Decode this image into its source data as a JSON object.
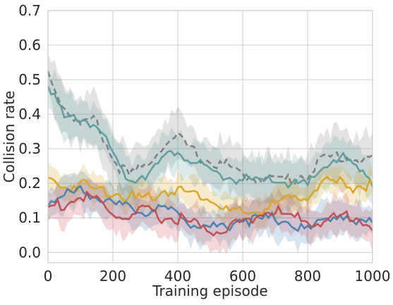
{
  "chart_data": {
    "type": "line",
    "title": "",
    "xlabel": "Training episode",
    "ylabel": "Collision rate",
    "xlim": [
      0,
      1000
    ],
    "ylim": [
      -0.03,
      0.7
    ],
    "xticks": [
      0,
      200,
      400,
      600,
      800,
      1000
    ],
    "yticks": [
      0.0,
      0.1,
      0.2,
      0.3,
      0.4,
      0.5,
      0.6,
      0.7
    ],
    "xtick_labels": [
      "0",
      "200",
      "400",
      "600",
      "800",
      "1000"
    ],
    "ytick_labels": [
      "0.0",
      "0.1",
      "0.2",
      "0.3",
      "0.4",
      "0.5",
      "0.6",
      "0.7"
    ],
    "grid": true,
    "legend": "none",
    "x": [
      0,
      50,
      100,
      150,
      200,
      250,
      300,
      350,
      400,
      450,
      500,
      550,
      600,
      650,
      700,
      750,
      800,
      850,
      900,
      950,
      1000
    ],
    "series": [
      {
        "color": "#7f7f7f",
        "dash": "dashed",
        "values": [
          0.52,
          0.42,
          0.37,
          0.38,
          0.27,
          0.22,
          0.25,
          0.31,
          0.33,
          0.29,
          0.26,
          0.25,
          0.22,
          0.22,
          0.21,
          0.21,
          0.23,
          0.27,
          0.28,
          0.27,
          0.27
        ],
        "band": 0.07
      },
      {
        "color": "#5f9ea0",
        "dash": "solid",
        "values": [
          0.5,
          0.38,
          0.39,
          0.37,
          0.28,
          0.21,
          0.23,
          0.26,
          0.3,
          0.26,
          0.23,
          0.22,
          0.21,
          0.2,
          0.21,
          0.2,
          0.19,
          0.25,
          0.28,
          0.24,
          0.21
        ],
        "band": 0.06
      },
      {
        "color": "#daa520",
        "dash": "solid",
        "values": [
          0.21,
          0.19,
          0.2,
          0.18,
          0.18,
          0.16,
          0.15,
          0.18,
          0.18,
          0.17,
          0.16,
          0.12,
          0.11,
          0.12,
          0.14,
          0.15,
          0.17,
          0.2,
          0.2,
          0.19,
          0.2
        ],
        "band": 0.04
      },
      {
        "color": "#4682b4",
        "dash": "solid",
        "values": [
          0.15,
          0.16,
          0.18,
          0.17,
          0.13,
          0.13,
          0.12,
          0.12,
          0.12,
          0.08,
          0.07,
          0.08,
          0.1,
          0.09,
          0.1,
          0.09,
          0.06,
          0.1,
          0.11,
          0.08,
          0.09
        ],
        "band": 0.05
      },
      {
        "color": "#c44e52",
        "dash": "solid",
        "values": [
          0.13,
          0.14,
          0.16,
          0.15,
          0.11,
          0.1,
          0.12,
          0.1,
          0.1,
          0.08,
          0.06,
          0.07,
          0.09,
          0.11,
          0.12,
          0.1,
          0.09,
          0.09,
          0.1,
          0.11,
          0.07
        ],
        "band": 0.05
      }
    ]
  }
}
